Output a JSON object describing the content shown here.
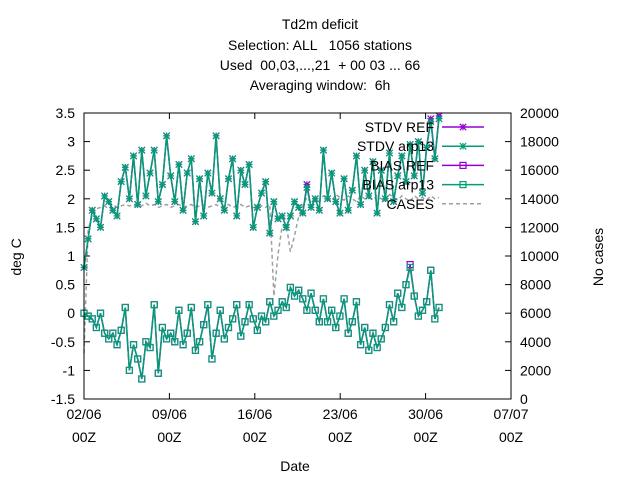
{
  "chart_data": {
    "type": "line",
    "title": [
      "Td2m deficit",
      "Selection: ALL   1056 stations",
      "Used  00,03,...,21  + 00 03 ... 66",
      "Averaging window:  6h"
    ],
    "xlabel": "Date",
    "ylabel": "deg C",
    "y2label": "No cases",
    "ylim": [
      -1.5,
      3.5
    ],
    "y2lim": [
      0,
      20000
    ],
    "yticks": [
      "-1.5",
      "-1",
      "-0.5",
      "0",
      "0.5",
      "1",
      "1.5",
      "2",
      "2.5",
      "3",
      "3.5"
    ],
    "y2ticks": [
      "0",
      "2000",
      "4000",
      "6000",
      "8000",
      "10000",
      "12000",
      "14000",
      "16000",
      "18000",
      "20000"
    ],
    "xticks": [
      {
        "line1": "02/06",
        "line2": "00Z"
      },
      {
        "line1": "09/06",
        "line2": "00Z"
      },
      {
        "line1": "16/06",
        "line2": "00Z"
      },
      {
        "line1": "23/06",
        "line2": "00Z"
      },
      {
        "line1": "30/06",
        "line2": "00Z"
      },
      {
        "line1": "07/07",
        "line2": "00Z"
      }
    ],
    "xlim_days": [
      2,
      37
    ],
    "legend_placement": "top-right",
    "series": [
      {
        "name": "STDV REF",
        "axis": "y1",
        "color": "#9400d3",
        "marker": "star",
        "values": [
          0.8,
          1.3,
          1.8,
          1.65,
          1.5,
          2.05,
          1.95,
          1.8,
          1.7,
          2.3,
          2.55,
          2.0,
          2.75,
          1.9,
          2.85,
          2.05,
          2.45,
          2.85,
          1.95,
          2.25,
          3.1,
          2.4,
          1.95,
          2.6,
          1.8,
          2.45,
          2.7,
          1.6,
          2.35,
          1.7,
          2.45,
          2.1,
          3.1,
          2.0,
          1.8,
          2.35,
          2.7,
          1.7,
          2.5,
          2.25,
          2.6,
          1.5,
          1.85,
          2.1,
          2.3,
          1.4,
          1.95,
          1.65,
          1.7,
          1.5,
          1.7,
          1.95,
          1.85,
          1.75,
          2.25,
          1.85,
          2.0,
          1.8,
          2.85,
          2.0,
          2.45,
          1.95,
          1.75,
          2.35,
          1.8,
          2.15,
          2.75,
          1.9,
          2.5,
          2.05,
          2.65,
          1.75,
          2.5,
          2.0,
          2.8,
          1.95,
          2.4,
          2.75,
          2.3,
          2.95,
          2.4,
          3.0,
          2.1,
          2.9,
          3.4,
          2.7,
          3.45
        ]
      },
      {
        "name": "STDV arp13",
        "axis": "y1",
        "color": "#009e73",
        "marker": "star",
        "values": [
          0.8,
          1.3,
          1.8,
          1.65,
          1.5,
          2.05,
          1.95,
          1.8,
          1.7,
          2.3,
          2.55,
          2.0,
          2.75,
          1.9,
          2.85,
          2.05,
          2.45,
          2.85,
          1.95,
          2.25,
          3.1,
          2.4,
          1.95,
          2.6,
          1.8,
          2.45,
          2.7,
          1.6,
          2.35,
          1.7,
          2.45,
          2.1,
          3.1,
          2.0,
          1.8,
          2.35,
          2.7,
          1.7,
          2.5,
          2.25,
          2.6,
          1.5,
          1.85,
          2.1,
          2.3,
          1.4,
          1.95,
          1.65,
          1.7,
          1.5,
          1.7,
          1.95,
          1.85,
          1.75,
          2.2,
          1.85,
          2.0,
          1.8,
          2.85,
          2.0,
          2.45,
          1.95,
          1.75,
          2.35,
          1.8,
          2.15,
          2.75,
          1.9,
          2.5,
          2.05,
          2.65,
          1.75,
          2.5,
          2.0,
          2.8,
          1.95,
          2.4,
          2.75,
          2.3,
          2.95,
          2.4,
          3.0,
          2.1,
          2.9,
          3.35,
          2.7,
          3.4
        ]
      },
      {
        "name": "BIAS REF",
        "axis": "y1",
        "color": "#9400d3",
        "marker": "square",
        "values": [
          0.0,
          -0.05,
          -0.1,
          -0.25,
          0.0,
          -0.35,
          -0.45,
          -0.35,
          -0.55,
          -0.3,
          0.1,
          -1.0,
          -0.55,
          -0.8,
          -1.15,
          -0.5,
          -0.6,
          0.15,
          -1.05,
          -0.25,
          -0.45,
          -0.35,
          -0.5,
          0.05,
          -0.55,
          -0.35,
          0.1,
          -0.65,
          -0.5,
          -0.2,
          0.15,
          -0.8,
          -0.35,
          0.05,
          -0.45,
          -0.25,
          -0.1,
          0.15,
          -0.4,
          -0.15,
          0.15,
          -0.1,
          -0.3,
          -0.05,
          -0.15,
          0.2,
          -0.05,
          0.05,
          0.2,
          0.1,
          0.45,
          0.3,
          0.4,
          0.25,
          0.05,
          0.35,
          0.05,
          -0.15,
          0.25,
          -0.15,
          0.05,
          -0.25,
          -0.05,
          0.25,
          -0.35,
          -0.15,
          0.2,
          -0.55,
          -0.25,
          -0.65,
          -0.35,
          -0.6,
          -0.45,
          -0.25,
          0.15,
          -0.15,
          0.35,
          0.1,
          0.5,
          0.85,
          0.3,
          -0.05,
          0.05,
          0.2,
          0.75,
          -0.1,
          0.1
        ]
      },
      {
        "name": "BIAS arp13",
        "axis": "y1",
        "color": "#009e73",
        "marker": "square",
        "values": [
          0.0,
          -0.05,
          -0.1,
          -0.25,
          0.0,
          -0.35,
          -0.45,
          -0.35,
          -0.55,
          -0.3,
          0.1,
          -1.0,
          -0.55,
          -0.8,
          -1.15,
          -0.5,
          -0.6,
          0.15,
          -1.05,
          -0.25,
          -0.45,
          -0.35,
          -0.5,
          0.05,
          -0.55,
          -0.35,
          0.1,
          -0.65,
          -0.5,
          -0.2,
          0.15,
          -0.8,
          -0.35,
          0.05,
          -0.45,
          -0.25,
          -0.1,
          0.15,
          -0.4,
          -0.15,
          0.15,
          -0.1,
          -0.3,
          -0.05,
          -0.15,
          0.2,
          -0.05,
          0.05,
          0.2,
          0.1,
          0.45,
          0.3,
          0.4,
          0.25,
          0.05,
          0.35,
          0.05,
          -0.15,
          0.25,
          -0.15,
          0.05,
          -0.25,
          -0.05,
          0.25,
          -0.35,
          -0.15,
          0.2,
          -0.55,
          -0.25,
          -0.65,
          -0.35,
          -0.6,
          -0.45,
          -0.25,
          0.15,
          -0.15,
          0.35,
          0.1,
          0.5,
          0.8,
          0.3,
          -0.05,
          0.05,
          0.2,
          0.75,
          -0.1,
          0.1
        ]
      },
      {
        "name": "CASES",
        "axis": "y2",
        "color": "#a0a0a0",
        "marker": "none",
        "dashed": true,
        "values": [
          3200,
          11800,
          12900,
          13300,
          13400,
          13500,
          13300,
          13600,
          13400,
          13500,
          13600,
          13500,
          13600,
          13400,
          13500,
          13700,
          13500,
          13600,
          13400,
          13500,
          13600,
          13400,
          13500,
          13600,
          13400,
          13500,
          13600,
          13400,
          13500,
          13600,
          13400,
          13500,
          13600,
          13400,
          13500,
          13600,
          13400,
          13500,
          13600,
          13400,
          13500,
          13400,
          13300,
          13500,
          13400,
          13600,
          7200,
          10100,
          12100,
          12200,
          10300,
          11400,
          12800,
          13500,
          14100,
          13700,
          14000,
          13800,
          14200,
          14000,
          13800,
          14300,
          14100,
          13900,
          14200,
          14000,
          13800,
          14200,
          14000,
          14100,
          13900,
          14200,
          14000,
          13800,
          14300,
          14100,
          13900,
          14200,
          14000,
          13800,
          14200,
          14000,
          14100,
          13900,
          14200,
          14000,
          14100
        ]
      }
    ]
  }
}
